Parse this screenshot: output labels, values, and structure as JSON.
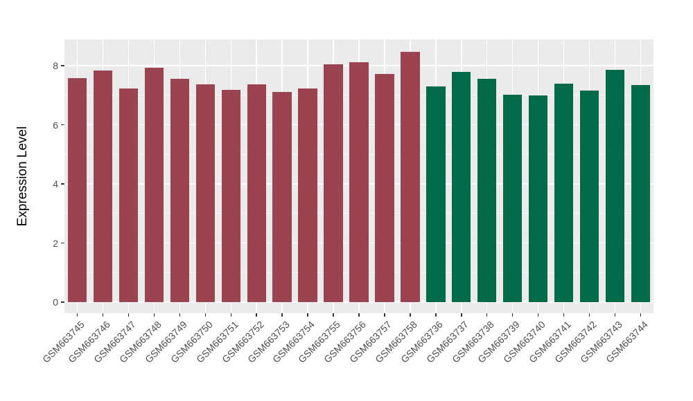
{
  "figure": {
    "background": "#FFFFFF",
    "panel_background": "#EBEBEB",
    "gridline_color": "#FFFFFF",
    "tick_color": "#333333",
    "axis_text_color": "#4D4D4D",
    "axis_title_color": "#000000"
  },
  "chart_data": {
    "type": "bar",
    "title": "",
    "xlabel": "",
    "ylabel": "Expression Level",
    "ylim": [
      0,
      8.89
    ],
    "yticks_major": [
      0,
      2,
      4,
      6,
      8
    ],
    "yticks_minor": [
      1,
      3,
      5,
      7
    ],
    "grid": "horizontal major+minor white lines; vertical major white line at each category center",
    "legend": "none",
    "x_tick_label_rotation_deg": -45,
    "categories": [
      "GSM663745",
      "GSM663746",
      "GSM663747",
      "GSM663748",
      "GSM663749",
      "GSM663750",
      "GSM663751",
      "GSM663752",
      "GSM663753",
      "GSM663754",
      "GSM663755",
      "GSM663756",
      "GSM663757",
      "GSM663758",
      "GSM663736",
      "GSM663737",
      "GSM663738",
      "GSM663739",
      "GSM663740",
      "GSM663741",
      "GSM663742",
      "GSM663743",
      "GSM663744"
    ],
    "values": [
      7.57,
      7.84,
      7.22,
      7.92,
      7.56,
      7.37,
      7.18,
      7.38,
      7.1,
      7.23,
      8.04,
      8.12,
      7.72,
      8.47,
      7.29,
      7.79,
      7.56,
      7.02,
      7.0,
      7.39,
      7.16,
      7.86,
      7.35
    ],
    "groups": [
      0,
      0,
      0,
      0,
      0,
      0,
      0,
      0,
      0,
      0,
      0,
      0,
      0,
      0,
      1,
      1,
      1,
      1,
      1,
      1,
      1,
      1,
      1
    ],
    "group_colors": [
      "#9C4352",
      "#026A49"
    ]
  }
}
